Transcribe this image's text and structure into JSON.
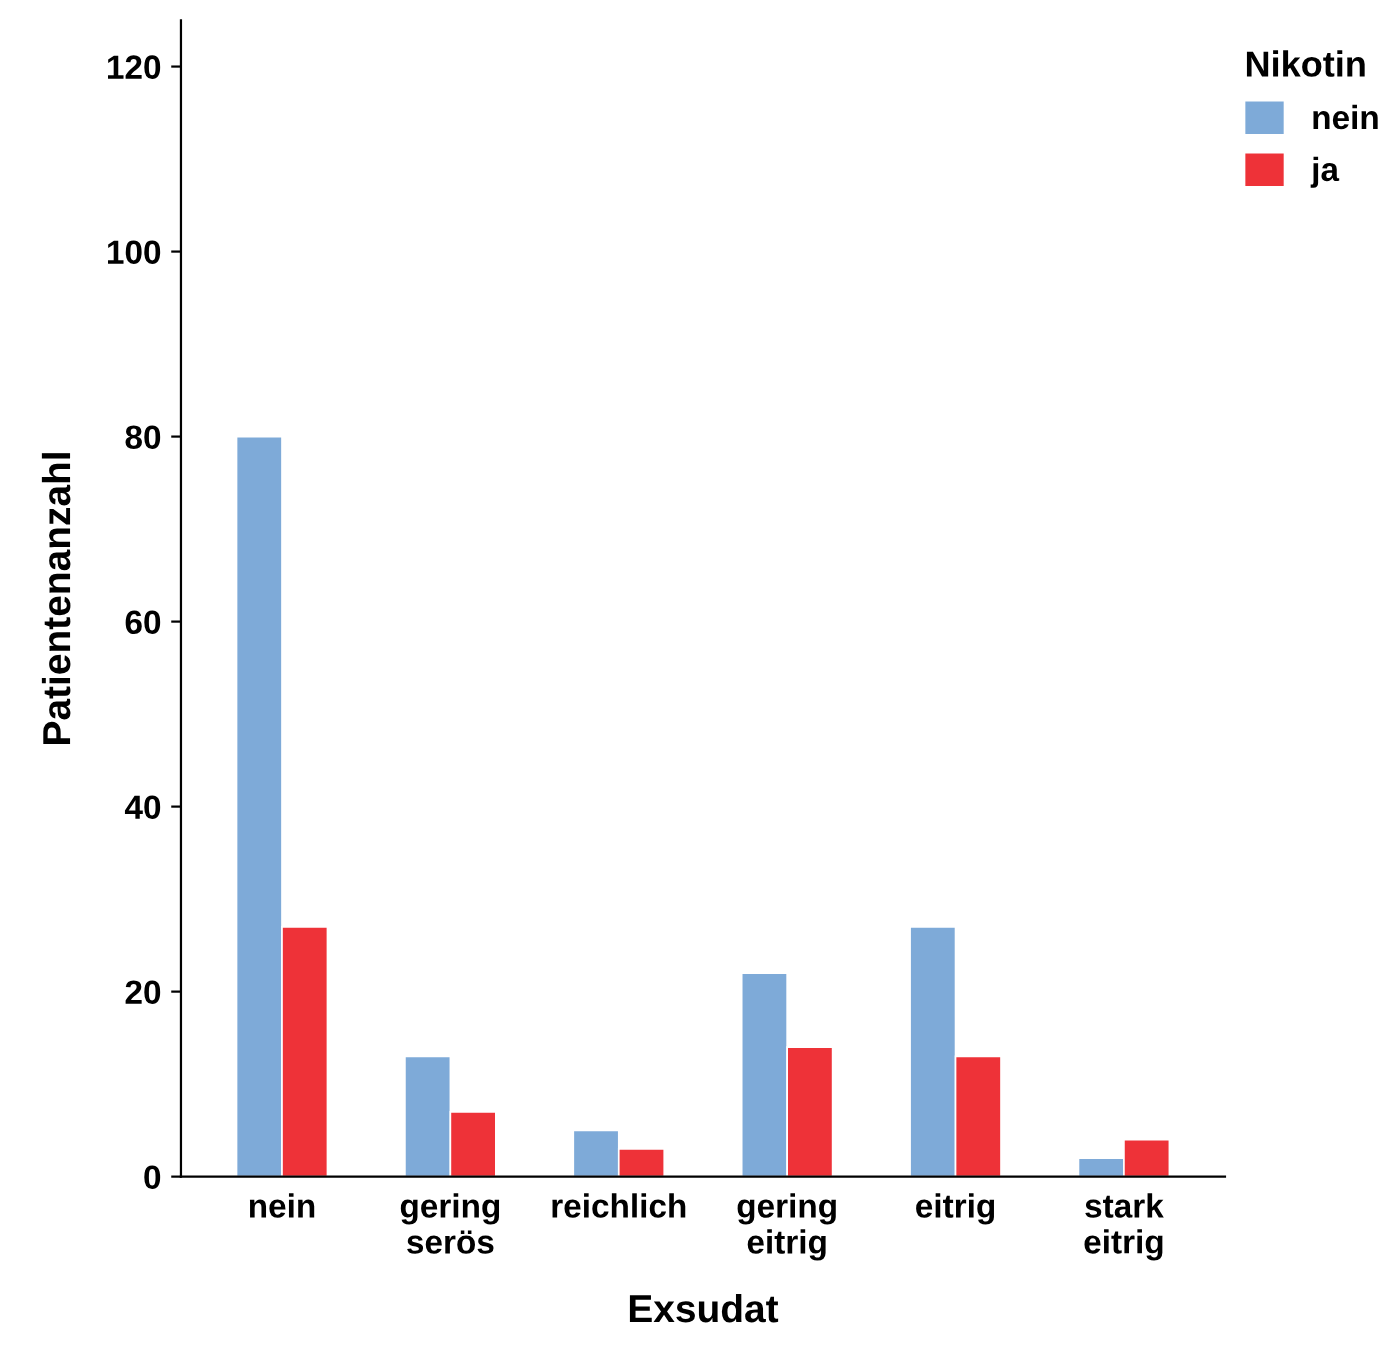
{
  "chart_data": {
    "type": "bar",
    "xlabel": "Exsudat",
    "ylabel": "Patientenanzahl",
    "legend_title": "Nikotin",
    "categories": [
      "nein",
      "gering\nserös",
      "reichlich",
      "gering\neitrig",
      "eitrig",
      "stark\neitrig"
    ],
    "series": [
      {
        "name": "nein",
        "color": "#7eaad8",
        "values": [
          80,
          13,
          5,
          22,
          27,
          2
        ]
      },
      {
        "name": "ja",
        "color": "#ee3238",
        "values": [
          27,
          7,
          3,
          14,
          13,
          4
        ]
      }
    ],
    "ylim": [
      0,
      125
    ],
    "yticks": [
      0,
      20,
      40,
      60,
      80,
      100,
      120
    ],
    "grid": false,
    "legend": "top right"
  }
}
